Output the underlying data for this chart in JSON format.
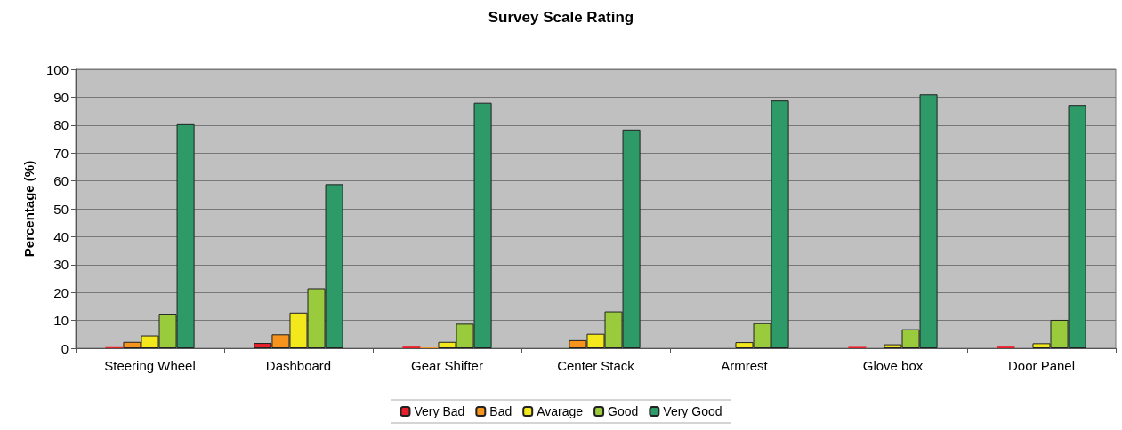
{
  "chart_data": {
    "type": "bar",
    "title": "Survey Scale Rating",
    "ylabel": "Percentage (%)",
    "categories": [
      "Steering Wheel",
      "Dashboard",
      "Gear Shifter",
      "Center Stack",
      "Armrest",
      "Glove box",
      "Door Panel"
    ],
    "series": [
      {
        "name": "Very Bad",
        "color": "#e8202a",
        "values": [
          0.4,
          1.9,
          0.6,
          0,
          0,
          0.5,
          0.6
        ]
      },
      {
        "name": "Bad",
        "color": "#f7941d",
        "values": [
          2.3,
          5,
          0.3,
          2.9,
          0,
          0,
          0
        ]
      },
      {
        "name": "Avarage",
        "color": "#f2e81c",
        "values": [
          4.6,
          12.8,
          2.3,
          5.2,
          2.2,
          1.4,
          1.8
        ]
      },
      {
        "name": "Good",
        "color": "#9acb3c",
        "values": [
          12.4,
          21.5,
          8.8,
          13.2,
          9,
          6.8,
          10.2
        ]
      },
      {
        "name": "Very Good",
        "color": "#2e9a68",
        "values": [
          80.3,
          58.8,
          88,
          78.4,
          88.8,
          91,
          87.2
        ]
      }
    ],
    "ylim": [
      0,
      100
    ],
    "yticks": [
      0,
      10,
      20,
      30,
      40,
      50,
      60,
      70,
      80,
      90,
      100
    ],
    "grid": "y",
    "legend": "bottom"
  }
}
